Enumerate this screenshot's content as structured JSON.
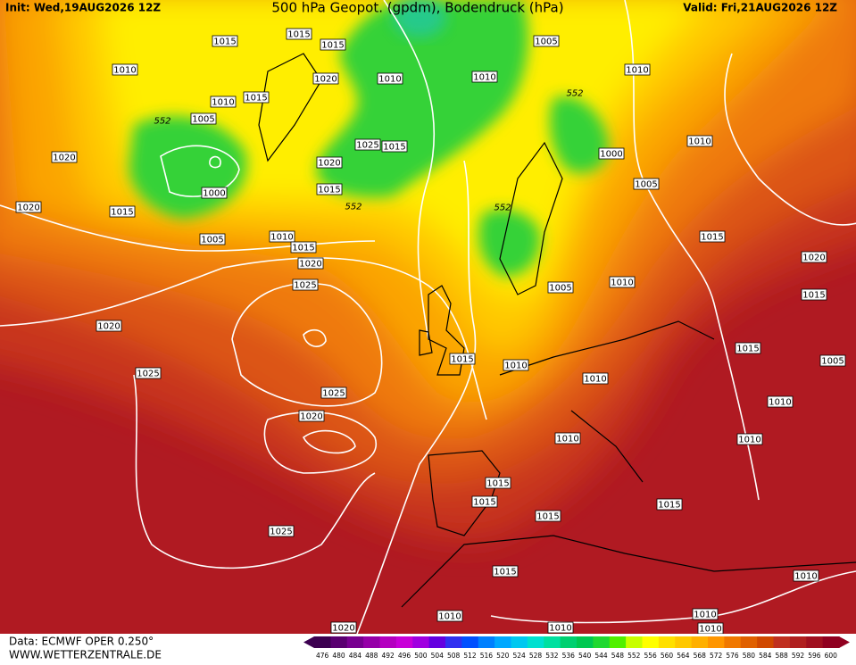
{
  "header": {
    "init": "Init: Wed,19AUG2026 12Z",
    "title": "500 hPa Geopot. (gpdm), Bodendruck (hPa)",
    "valid": "Valid: Fri,21AUG2026 12Z"
  },
  "footer": {
    "data_source": "Data: ECMWF OPER 0.250°",
    "site": "WWW.WETTERZENTRALE.DE"
  },
  "isobar_labels": [
    "1015",
    "1015",
    "1015",
    "1010",
    "1020",
    "1010",
    "1010",
    "1005",
    "1010",
    "1010",
    "1015",
    "552",
    "1005",
    "552",
    "1020",
    "1025",
    "1015",
    "1010",
    "1000",
    "1020",
    "1000",
    "1015",
    "552",
    "1005",
    "1020",
    "1015",
    "552",
    "1005",
    "1010",
    "1015",
    "1015",
    "1020",
    "1020",
    "1025",
    "1005",
    "1010",
    "1015",
    "1020",
    "1015",
    "1015",
    "1010",
    "1005",
    "1025",
    "1025",
    "1010",
    "1010",
    "1020",
    "1010",
    "1010",
    "1015",
    "1015",
    "1015",
    "1015",
    "1025",
    "1015",
    "1010",
    "1010",
    "1020",
    "1010",
    "1010",
    "1010"
  ],
  "scale": {
    "labels": [
      476,
      480,
      484,
      488,
      492,
      496,
      500,
      504,
      508,
      512,
      516,
      520,
      524,
      528,
      532,
      536,
      540,
      544,
      548,
      552,
      556,
      560,
      564,
      568,
      572,
      576,
      580,
      584,
      588,
      592,
      596,
      600
    ],
    "colors": [
      "#3c0050",
      "#5a0070",
      "#780090",
      "#9600a8",
      "#b400c0",
      "#c800d8",
      "#a000e0",
      "#6400e0",
      "#3030f0",
      "#0050ff",
      "#0080ff",
      "#00a8ff",
      "#00c8f0",
      "#00e0d0",
      "#00e0a0",
      "#00d070",
      "#00c850",
      "#20d830",
      "#50f000",
      "#c8ff00",
      "#ffff00",
      "#ffe000",
      "#ffc800",
      "#ffb000",
      "#ff9600",
      "#f07800",
      "#e06000",
      "#d04800",
      "#c03020",
      "#b02020",
      "#a01020",
      "#900020"
    ]
  }
}
